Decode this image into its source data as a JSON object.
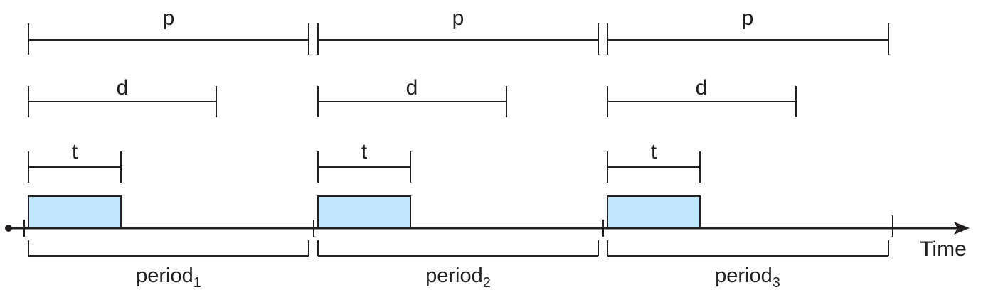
{
  "colors": {
    "line": "#231f20",
    "job_fill": "#bfe6fa",
    "background": "#ffffff"
  },
  "labels": {
    "period_length": "p",
    "deadline": "d",
    "processing_time": "t",
    "time_axis": "Time"
  },
  "periods": [
    {
      "name": "period",
      "subscript": "1"
    },
    {
      "name": "period",
      "subscript": "2"
    },
    {
      "name": "period",
      "subscript": "3"
    }
  ]
}
